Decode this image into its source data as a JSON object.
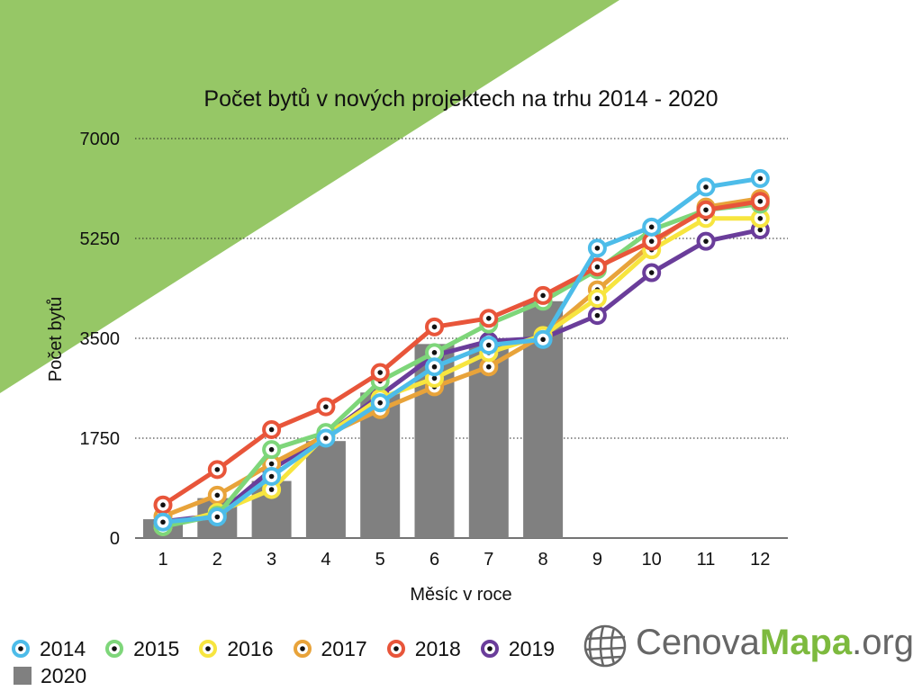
{
  "chart_data": {
    "type": "line",
    "title": "Počet bytů v nových projektech na trhu 2014 - 2020",
    "xlabel": "Měsíc v roce",
    "ylabel": "Počet bytů",
    "categories": [
      "1",
      "2",
      "3",
      "4",
      "5",
      "6",
      "7",
      "8",
      "9",
      "10",
      "11",
      "12"
    ],
    "yticks": [
      "0",
      "1750",
      "3500",
      "5250",
      "7000"
    ],
    "ylim": [
      0,
      7000
    ],
    "grid": "horizontal dotted",
    "legend_position": "bottom",
    "bar_series": {
      "name": "2020",
      "color": "#808080",
      "values": [
        330,
        700,
        1000,
        1700,
        2550,
        3400,
        3400,
        4150
      ]
    },
    "series": [
      {
        "name": "2019",
        "color": "#6a3d9a",
        "values": [
          290,
          400,
          1200,
          1800,
          2500,
          3200,
          3450,
          3500,
          3900,
          4650,
          5200,
          5400
        ]
      },
      {
        "name": "2017",
        "color": "#e8a33a",
        "values": [
          380,
          750,
          1300,
          1800,
          2250,
          2650,
          3000,
          3550,
          4350,
          5150,
          5800,
          5950
        ]
      },
      {
        "name": "2016",
        "color": "#f7e53f",
        "values": [
          200,
          450,
          850,
          1800,
          2450,
          2800,
          3250,
          3550,
          4200,
          5050,
          5600,
          5600
        ]
      },
      {
        "name": "2015",
        "color": "#7ed67a",
        "values": [
          200,
          400,
          1550,
          1850,
          2750,
          3250,
          3750,
          4150,
          4700,
          5400,
          5750,
          5850
        ]
      },
      {
        "name": "2018",
        "color": "#e8553a",
        "values": [
          580,
          1200,
          1900,
          2300,
          2900,
          3700,
          3850,
          4250,
          4750,
          5200,
          5750,
          5900
        ]
      },
      {
        "name": "2014",
        "color": "#4dbce9",
        "values": [
          280,
          370,
          1080,
          1750,
          2370,
          3000,
          3380,
          3480,
          5080,
          5450,
          6150,
          6300
        ]
      }
    ]
  },
  "legend": {
    "items": [
      {
        "label": "2014",
        "color": "#4dbce9"
      },
      {
        "label": "2015",
        "color": "#7ed67a"
      },
      {
        "label": "2016",
        "color": "#f7e53f"
      },
      {
        "label": "2017",
        "color": "#e8a33a"
      },
      {
        "label": "2018",
        "color": "#e8553a"
      },
      {
        "label": "2019",
        "color": "#6a3d9a"
      }
    ],
    "bar_label": "2020",
    "bar_color": "#808080"
  },
  "logo": {
    "part1": "Cenova",
    "part2": "Mapa",
    "part3": ".org",
    "icon": "globe-grid-icon"
  },
  "background": {
    "accent": "#96c766"
  }
}
